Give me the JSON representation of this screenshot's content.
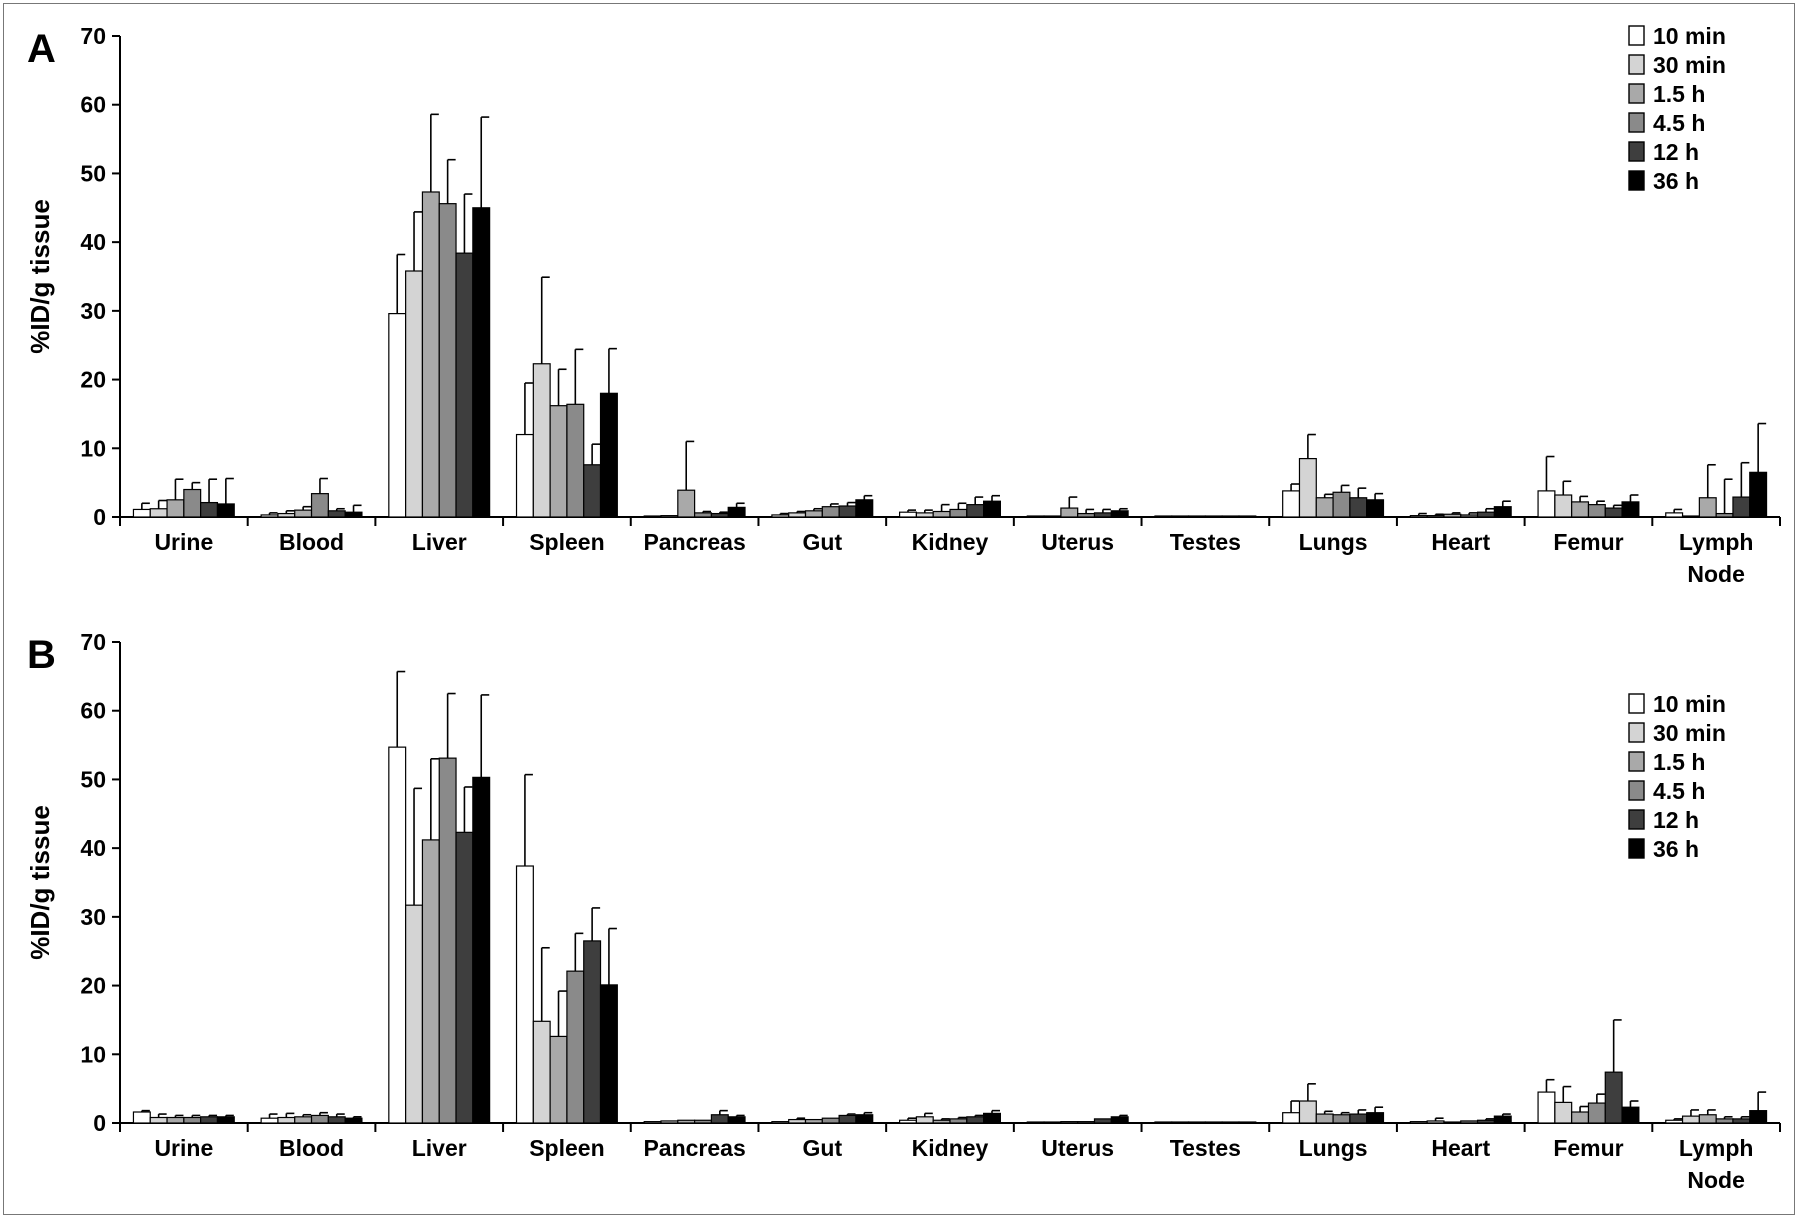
{
  "chart_data": [
    {
      "type": "bar",
      "panel_label": "A",
      "ylabel": "%ID/g tissue",
      "ylim": [
        0,
        70
      ],
      "yticks": [
        0,
        10,
        20,
        30,
        40,
        50,
        60,
        70
      ],
      "categories": [
        [
          "Urine"
        ],
        [
          "Blood"
        ],
        [
          "Liver"
        ],
        [
          "Spleen"
        ],
        [
          "Pancreas"
        ],
        [
          "Gut"
        ],
        [
          "Kidney"
        ],
        [
          "Uterus"
        ],
        [
          "Testes"
        ],
        [
          "Lungs"
        ],
        [
          "Heart"
        ],
        [
          "Femur"
        ],
        [
          "Lymph",
          "Node"
        ]
      ],
      "legend_position": "top-right",
      "series": [
        {
          "name": "10 min",
          "color": "#ffffff",
          "values": [
            1.1,
            0.3,
            29.6,
            12.0,
            0.1,
            0.3,
            0.7,
            0.1,
            0.05,
            3.8,
            0.2,
            3.8,
            0.6
          ],
          "errors": [
            0.9,
            0.3,
            8.6,
            7.5,
            0.1,
            0.2,
            0.3,
            0.1,
            0.05,
            1.0,
            0.3,
            5.0,
            0.5
          ]
        },
        {
          "name": "30 min",
          "color": "#d4d4d4",
          "values": [
            1.2,
            0.5,
            35.8,
            22.3,
            0.2,
            0.6,
            0.6,
            0.1,
            0.05,
            8.5,
            0.2,
            3.2,
            0.1
          ],
          "errors": [
            1.2,
            0.4,
            8.6,
            12.6,
            0.1,
            0.2,
            0.4,
            0.1,
            0.05,
            3.5,
            0.2,
            2.0,
            0.1
          ]
        },
        {
          "name": "1.5 h",
          "color": "#a9a9a9",
          "values": [
            2.5,
            1.0,
            47.3,
            16.2,
            3.9,
            0.9,
            0.8,
            1.3,
            0.05,
            2.8,
            0.4,
            2.2,
            2.8
          ],
          "errors": [
            3.0,
            0.5,
            11.3,
            5.3,
            7.1,
            0.3,
            1.0,
            1.6,
            0.05,
            0.5,
            0.2,
            0.8,
            4.8
          ]
        },
        {
          "name": "4.5 h",
          "color": "#8a8a8a",
          "values": [
            4.0,
            3.4,
            45.6,
            16.4,
            0.6,
            1.5,
            1.1,
            0.5,
            0.05,
            3.6,
            0.3,
            1.8,
            0.5
          ]
        },
        {
          "name": "12 h",
          "color": "#3e3e3e",
          "values": [
            2.1,
            0.9,
            38.4,
            7.6,
            0.5,
            1.6,
            1.8,
            0.6,
            0.1,
            2.8,
            0.7,
            1.3,
            2.9
          ]
        },
        {
          "name": "36 h",
          "color": "#000000",
          "values": [
            1.9,
            0.7,
            45.0,
            18.0,
            1.4,
            2.5,
            2.3,
            0.9,
            0.1,
            2.5,
            1.5,
            2.2,
            6.5
          ]
        }
      ]
    },
    {
      "type": "bar",
      "panel_label": "B",
      "ylabel": "%ID/g tissue",
      "ylim": [
        0,
        70
      ],
      "yticks": [
        0,
        10,
        20,
        30,
        40,
        50,
        60,
        70
      ],
      "categories": [
        [
          "Urine"
        ],
        [
          "Blood"
        ],
        [
          "Liver"
        ],
        [
          "Spleen"
        ],
        [
          "Pancreas"
        ],
        [
          "Gut"
        ],
        [
          "Kidney"
        ],
        [
          "Uterus"
        ],
        [
          "Testes"
        ],
        [
          "Lungs"
        ],
        [
          "Heart"
        ],
        [
          "Femur"
        ],
        [
          "Lymph",
          "Node"
        ]
      ],
      "legend_position": "top-right",
      "series": [
        {
          "name": "10 min",
          "color": "#ffffff",
          "values": [
            1.6,
            0.7,
            54.7,
            37.4,
            0.2,
            0.2,
            0.4,
            0.1,
            0.05,
            1.5,
            0.2,
            4.5,
            0.4
          ]
        },
        {
          "name": "30 min",
          "color": "#d4d4d4",
          "values": [
            0.8,
            0.8,
            31.7,
            14.8,
            0.3,
            0.5,
            0.9,
            0.1,
            0.05,
            3.2,
            0.3,
            3.0,
            1.0
          ]
        },
        {
          "name": "1.5 h",
          "color": "#a9a9a9",
          "values": [
            0.8,
            0.9,
            41.2,
            12.6,
            0.4,
            0.5,
            0.4,
            0.2,
            0.05,
            1.3,
            0.1,
            1.6,
            1.2
          ]
        },
        {
          "name": "4.5 h",
          "color": "#8a8a8a",
          "values": [
            0.8,
            1.1,
            53.1,
            22.1,
            0.4,
            0.7,
            0.6,
            0.2,
            0.05,
            1.2,
            0.3,
            2.9,
            0.6
          ]
        },
        {
          "name": "12 h",
          "color": "#3e3e3e",
          "values": [
            0.9,
            0.9,
            42.3,
            26.5,
            1.2,
            1.1,
            0.9,
            0.6,
            0.05,
            1.3,
            0.4,
            7.4,
            0.6
          ]
        },
        {
          "name": "36 h",
          "color": "#000000",
          "values": [
            0.9,
            0.7,
            50.3,
            20.1,
            0.9,
            1.2,
            1.4,
            0.9,
            0.1,
            1.5,
            1.0,
            2.3,
            1.8
          ]
        }
      ]
    }
  ]
}
